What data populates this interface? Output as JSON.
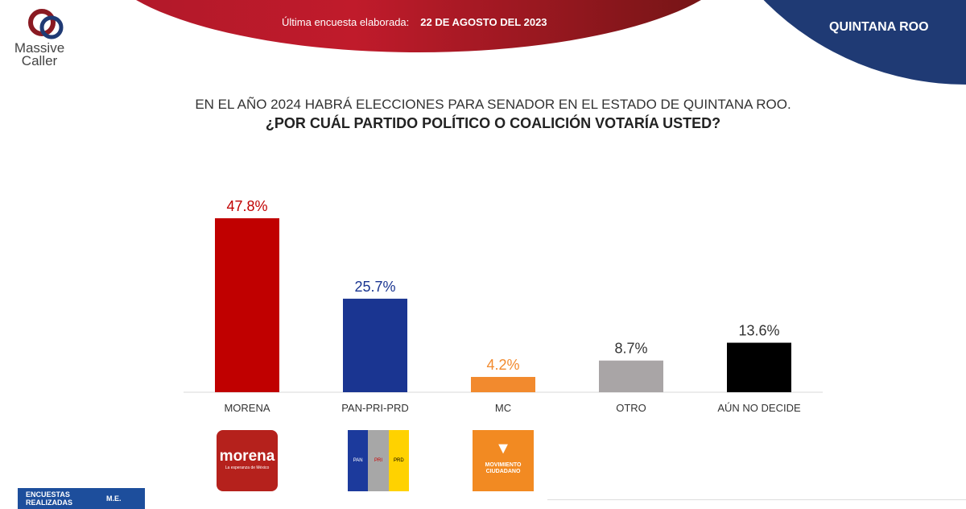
{
  "header": {
    "brand": "Massive Caller",
    "survey_label": "Última encuesta elaborada:",
    "survey_date": "22 DE AGOSTO DEL 2023",
    "state": "QUINTANA ROO"
  },
  "question": {
    "line1": "EN EL AÑO 2024 HABRÁ ELECCIONES PARA SENADOR EN EL ESTADO DE QUINTANA ROO.",
    "line2": "¿POR CUÁL PARTIDO POLÍTICO O COALICIÓN  VOTARÍA USTED?"
  },
  "chart_data": {
    "type": "bar",
    "categories": [
      "MORENA",
      "PAN-PRI-PRD",
      "MC",
      "OTRO",
      "AÚN NO DECIDE"
    ],
    "values": [
      47.8,
      25.7,
      4.2,
      8.7,
      13.6
    ],
    "labels": [
      "47.8%",
      "25.7%",
      "4.2%",
      "8.7%",
      "13.6%"
    ],
    "colors": [
      "#c00000",
      "#1a3591",
      "#f28a2e",
      "#a9a5a6",
      "#000000"
    ],
    "label_colors": [
      "#c00000",
      "#1a3591",
      "#f28a2e",
      "#333333",
      "#333333"
    ],
    "ylim": [
      0,
      50
    ],
    "grid": false
  },
  "logos": {
    "morena": "morena",
    "morena_tag": "La esperanza de México",
    "mc": "MOVIMIENTO CIUDADANO",
    "pan": "PAN",
    "pri": "PRI",
    "prd": "PRD"
  },
  "footer": {
    "col1": "ENCUESTAS REALIZADAS",
    "col2": "M.E."
  }
}
